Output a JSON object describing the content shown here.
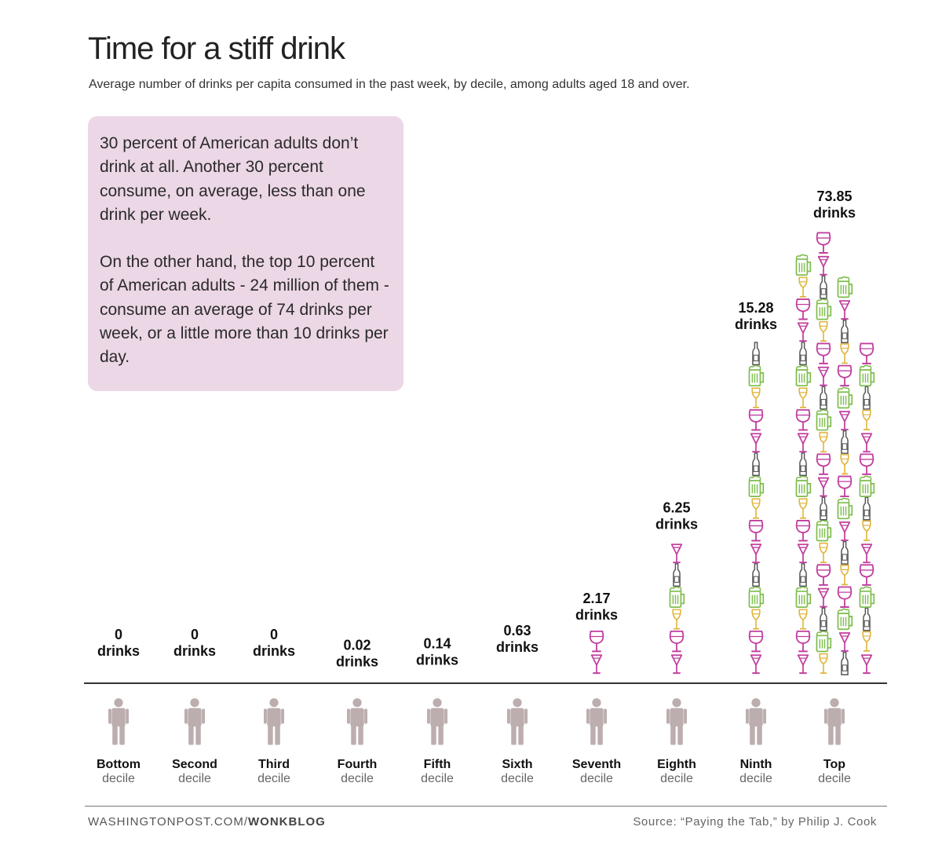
{
  "header": {
    "title": "Time for a stiff drink",
    "subtitle": "Average number of drinks per capita consumed in the past week, by decile, among adults aged 18 and over."
  },
  "callout": {
    "paragraph1": "30 percent of American adults don’t drink at all. Another 30 percent consume, on average, less than one drink per week.",
    "paragraph2": "On the other hand, the top 10 percent of American adults - 24 million of them - consume an average of 74 drinks per week, or a little more than 10 drinks per day."
  },
  "footer": {
    "site": "WASHINGTONPOST.COM/",
    "section": "WONKBLOG",
    "source": "Source: “Paying the Tab,” by Philip J. Cook"
  },
  "colors": {
    "pink": "#c13f9f",
    "green": "#7dbd4b",
    "yellow": "#e0b43a",
    "gray": "#555555",
    "person": "#bcaeae",
    "callout_bg": "#ecd7e6"
  },
  "chart_data": {
    "type": "bar",
    "title": "Time for a stiff drink",
    "subtitle": "Average number of drinks per capita consumed in the past week, by decile, among adults aged 18 and over.",
    "unit_label": "drinks",
    "categories": [
      {
        "name": "Bottom",
        "sub": "decile"
      },
      {
        "name": "Second",
        "sub": "decile"
      },
      {
        "name": "Third",
        "sub": "decile"
      },
      {
        "name": "Fourth",
        "sub": "decile"
      },
      {
        "name": "Fifth",
        "sub": "decile"
      },
      {
        "name": "Sixth",
        "sub": "decile"
      },
      {
        "name": "Seventh",
        "sub": "decile"
      },
      {
        "name": "Eighth",
        "sub": "decile"
      },
      {
        "name": "Ninth",
        "sub": "decile"
      },
      {
        "name": "Top",
        "sub": "decile"
      }
    ],
    "values": [
      0,
      0,
      0,
      0.02,
      0.14,
      0.63,
      2.17,
      6.25,
      15.28,
      73.85
    ],
    "value_labels": [
      "0",
      "0",
      "0",
      "0.02",
      "0.14",
      "0.63",
      "2.17",
      "6.25",
      "15.28",
      "73.85"
    ],
    "icon_types": [
      "martini glass",
      "wine glass",
      "beer mug",
      "white wine glass",
      "bottle"
    ],
    "source": "“Paying the Tab,” by Philip J. Cook"
  }
}
